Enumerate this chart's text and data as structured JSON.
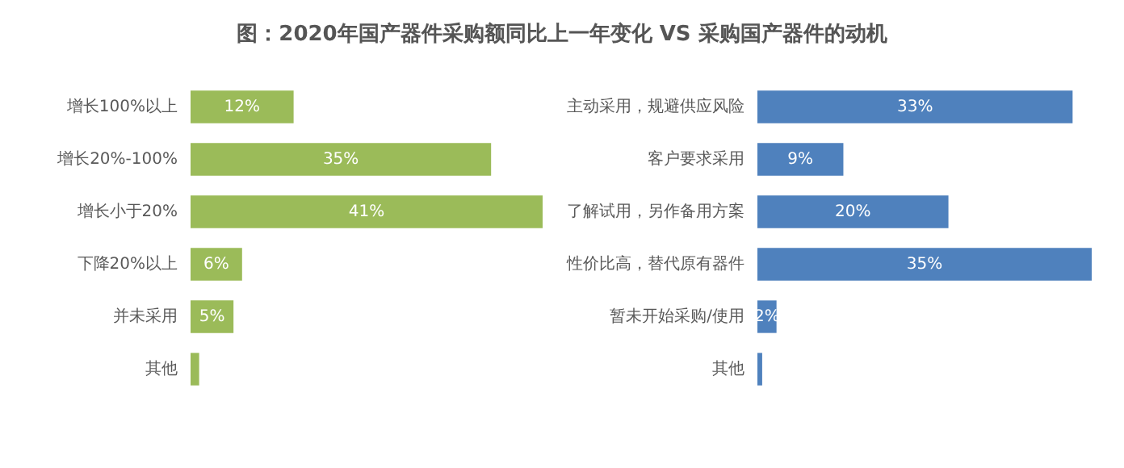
{
  "chart_data": [
    {
      "type": "bar",
      "orientation": "horizontal",
      "title": "图：2020年国产器件采购额同比上一年变化 VS 采购国产器件的动机",
      "categories": [
        "增长100%以上",
        "增长20%-100%",
        "增长小于20%",
        "下降20%以上",
        "并未采用",
        "其他"
      ],
      "values": [
        12,
        35,
        41,
        6,
        5,
        1
      ],
      "value_labels": [
        "12%",
        "35%",
        "41%",
        "6%",
        "5%",
        null
      ],
      "color": "#9bbb59"
    },
    {
      "type": "bar",
      "orientation": "horizontal",
      "categories": [
        "主动采用，规避供应风险",
        "客户要求采用",
        "了解试用，另作备用方案",
        "性价比高，替代原有器件",
        "暂未开始采购/使用",
        "其他"
      ],
      "values": [
        33,
        9,
        20,
        35,
        2,
        0.5
      ],
      "value_labels": [
        "33%",
        "9%",
        "20%",
        "35%",
        "2%",
        null
      ],
      "color": "#4f81bd"
    }
  ]
}
